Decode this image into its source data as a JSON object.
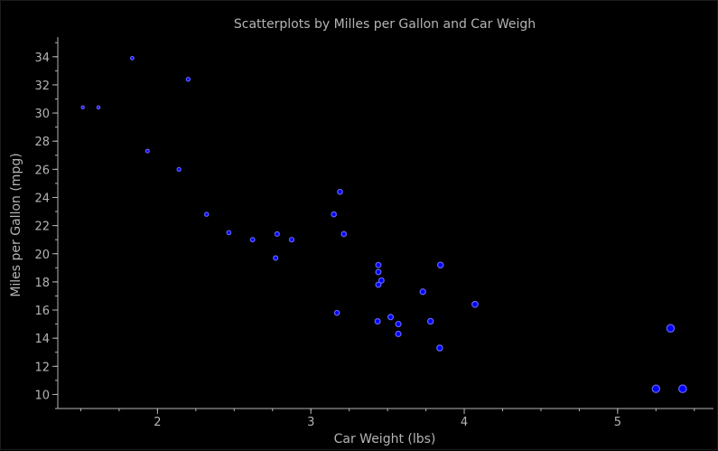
{
  "chart_data": {
    "type": "scatter",
    "title": "Scatterplots by Milles per Gallon and Car Weigh",
    "xlabel": "Car Weight (lbs)",
    "ylabel": "Miles per Gallon (mpg)",
    "xlim": [
      1.35,
      5.625
    ],
    "ylim": [
      9.0,
      35.4
    ],
    "x_ticks": [
      2,
      3,
      4,
      5
    ],
    "y_ticks": [
      10,
      12,
      14,
      16,
      18,
      20,
      22,
      24,
      26,
      28,
      30,
      32,
      34
    ],
    "x_minor_step": 0.25,
    "y_minor_step": 1,
    "grid": false,
    "legend": "none",
    "colors": {
      "marker_edge": "#6464ff",
      "marker_fill": "#0000ff",
      "axis": "#b4b4b4",
      "background": "#000000"
    },
    "points": [
      {
        "x": 2.62,
        "y": 21.0
      },
      {
        "x": 2.875,
        "y": 21.0
      },
      {
        "x": 2.32,
        "y": 22.8
      },
      {
        "x": 3.215,
        "y": 21.4
      },
      {
        "x": 3.44,
        "y": 18.7
      },
      {
        "x": 3.46,
        "y": 18.1
      },
      {
        "x": 3.57,
        "y": 14.3
      },
      {
        "x": 3.19,
        "y": 24.4
      },
      {
        "x": 3.15,
        "y": 22.8
      },
      {
        "x": 3.44,
        "y": 19.2
      },
      {
        "x": 3.44,
        "y": 17.8
      },
      {
        "x": 4.07,
        "y": 16.4
      },
      {
        "x": 3.73,
        "y": 17.3
      },
      {
        "x": 3.78,
        "y": 15.2
      },
      {
        "x": 5.25,
        "y": 10.4
      },
      {
        "x": 5.424,
        "y": 10.4
      },
      {
        "x": 5.345,
        "y": 14.7
      },
      {
        "x": 2.2,
        "y": 32.4
      },
      {
        "x": 1.615,
        "y": 30.4
      },
      {
        "x": 1.835,
        "y": 33.9
      },
      {
        "x": 2.465,
        "y": 21.5
      },
      {
        "x": 3.52,
        "y": 15.5
      },
      {
        "x": 3.435,
        "y": 15.2
      },
      {
        "x": 3.84,
        "y": 13.3
      },
      {
        "x": 3.845,
        "y": 19.2
      },
      {
        "x": 1.935,
        "y": 27.3
      },
      {
        "x": 2.14,
        "y": 26.0
      },
      {
        "x": 1.513,
        "y": 30.4
      },
      {
        "x": 3.17,
        "y": 15.8
      },
      {
        "x": 2.77,
        "y": 19.7
      },
      {
        "x": 3.57,
        "y": 15.0
      },
      {
        "x": 2.78,
        "y": 21.4
      }
    ]
  }
}
